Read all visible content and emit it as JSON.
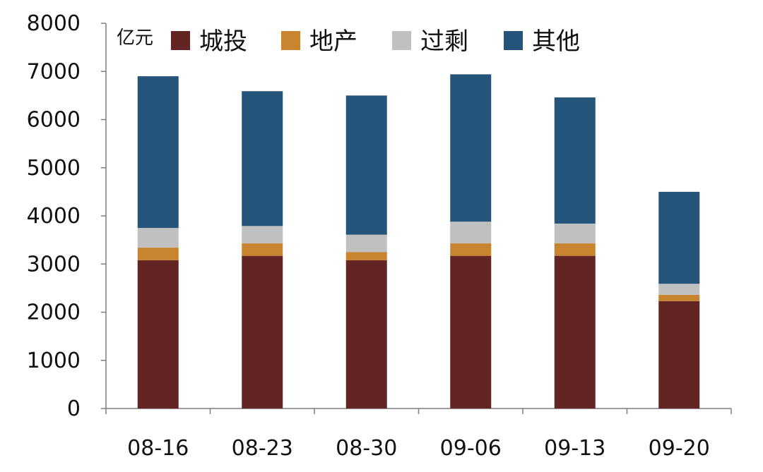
{
  "chart_data": {
    "type": "bar",
    "stacked": true,
    "unit": "亿元",
    "categories": [
      "08-16",
      "08-23",
      "08-30",
      "09-06",
      "09-13",
      "09-20"
    ],
    "series": [
      {
        "name": "城投",
        "color": "#632523",
        "values": [
          3080,
          3170,
          3080,
          3170,
          3170,
          2230
        ]
      },
      {
        "name": "地产",
        "color": "#C8842E",
        "values": [
          260,
          260,
          170,
          260,
          260,
          130
        ]
      },
      {
        "name": "过剩",
        "color": "#C0C0C0",
        "values": [
          410,
          360,
          360,
          450,
          410,
          230
        ]
      },
      {
        "name": "其他",
        "color": "#24547A",
        "values": [
          3150,
          2800,
          2890,
          3060,
          2620,
          1910
        ]
      }
    ],
    "ylim": [
      0,
      8000
    ],
    "yticks": [
      "0",
      "1000",
      "2000",
      "3000",
      "4000",
      "5000",
      "6000",
      "7000",
      "8000"
    ],
    "legend_position": "top",
    "grid": false
  }
}
